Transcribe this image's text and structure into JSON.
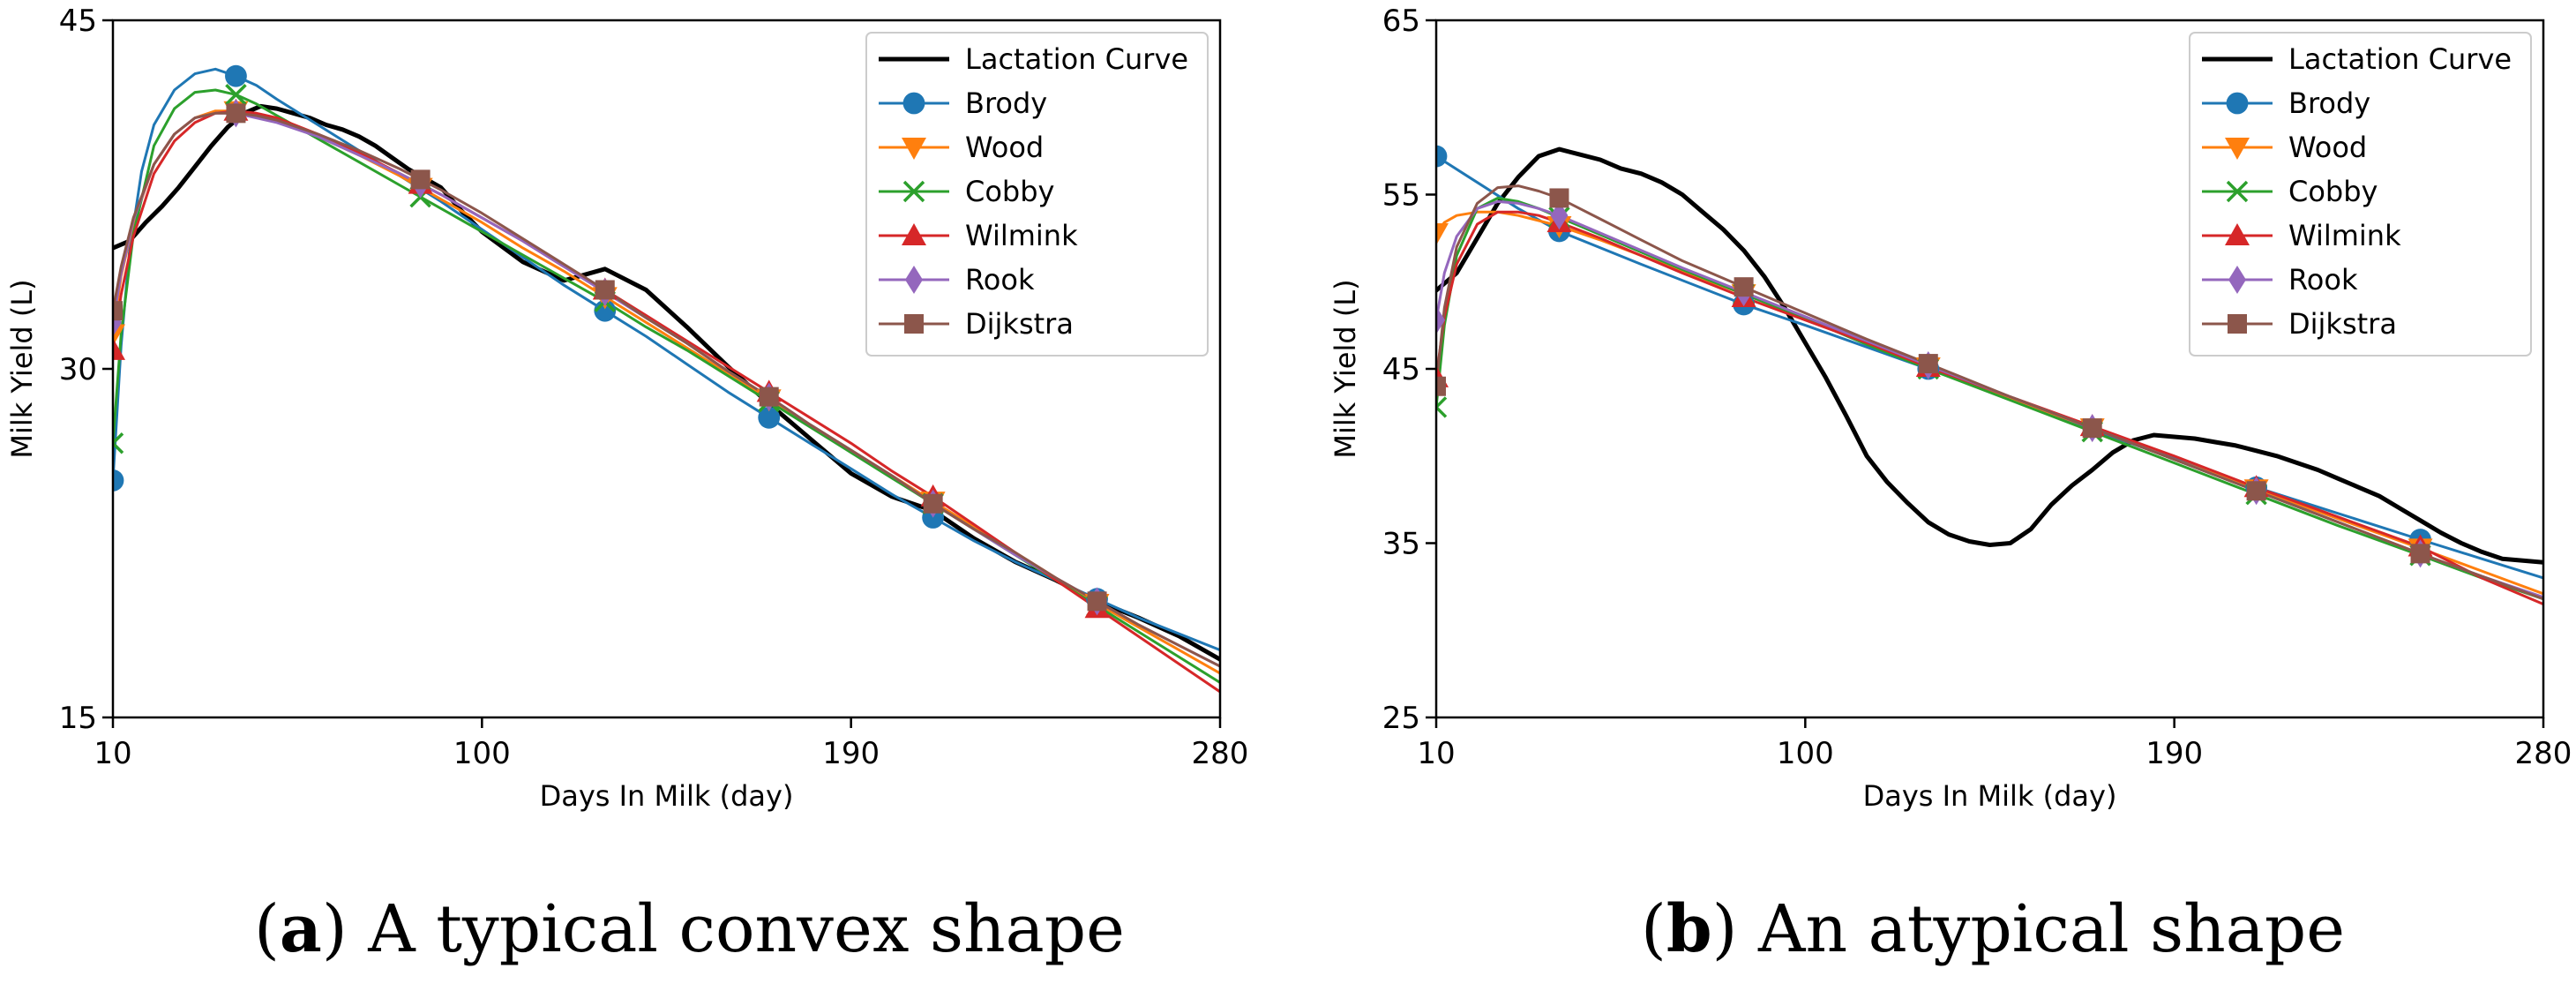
{
  "chart_data": [
    {
      "type": "line",
      "panel_label": "a",
      "caption": "A typical convex shape",
      "xlabel": "Days In Milk (day)",
      "ylabel": "Milk Yield (L)",
      "xlim": [
        10,
        280
      ],
      "ylim": [
        15,
        45
      ],
      "xticks": [
        10,
        100,
        190,
        280
      ],
      "yticks": [
        15,
        30,
        45
      ],
      "legend_position": "top-right",
      "series": [
        {
          "name": "Lactation Curve",
          "color": "#000000",
          "marker": "none",
          "x": [
            10,
            14,
            18,
            22,
            26,
            30,
            34,
            38,
            42,
            46,
            50,
            54,
            58,
            62,
            66,
            70,
            74,
            78,
            82,
            86,
            90,
            95,
            100,
            110,
            120,
            130,
            140,
            150,
            160,
            170,
            180,
            190,
            200,
            210,
            220,
            230,
            240,
            250,
            260,
            270,
            280
          ],
          "y": [
            35.2,
            35.5,
            36.3,
            37.0,
            37.8,
            38.7,
            39.6,
            40.4,
            41.0,
            41.3,
            41.2,
            41.0,
            40.8,
            40.5,
            40.3,
            40.0,
            39.6,
            39.1,
            38.6,
            38.2,
            37.8,
            36.8,
            35.9,
            34.6,
            33.8,
            34.3,
            33.4,
            31.8,
            30.1,
            28.5,
            27.0,
            25.5,
            24.5,
            23.9,
            22.7,
            21.7,
            20.9,
            20.0,
            19.3,
            18.5,
            17.5
          ]
        },
        {
          "name": "Brody",
          "color": "#1f77b4",
          "marker": "circle",
          "x": [
            10,
            12,
            14,
            17,
            20,
            25,
            30,
            35,
            40,
            45,
            50,
            60,
            70,
            80,
            90,
            100,
            110,
            120,
            130,
            140,
            150,
            160,
            170,
            180,
            190,
            200,
            210,
            220,
            230,
            240,
            250,
            260,
            270,
            280
          ],
          "y": [
            25.2,
            31.0,
            35.0,
            38.5,
            40.5,
            42.0,
            42.7,
            42.9,
            42.6,
            42.2,
            41.6,
            40.5,
            39.4,
            38.3,
            37.2,
            36.0,
            34.8,
            33.6,
            32.5,
            31.4,
            30.2,
            29.0,
            27.9,
            26.8,
            25.7,
            24.6,
            23.6,
            22.6,
            21.7,
            20.9,
            20.1,
            19.3,
            18.6,
            17.9
          ],
          "markers": [
            10,
            40,
            130,
            170,
            210,
            250
          ]
        },
        {
          "name": "Wood",
          "color": "#ff7f0e",
          "marker": "triangle-down",
          "x": [
            10,
            12,
            15,
            20,
            25,
            30,
            35,
            40,
            45,
            50,
            60,
            70,
            80,
            90,
            100,
            110,
            120,
            130,
            140,
            150,
            160,
            170,
            180,
            190,
            200,
            210,
            220,
            230,
            240,
            250,
            260,
            270,
            280
          ],
          "y": [
            31.5,
            34.0,
            36.3,
            38.8,
            40.1,
            40.8,
            41.1,
            41.1,
            40.9,
            40.7,
            40.0,
            39.2,
            38.3,
            37.3,
            36.3,
            35.2,
            34.2,
            33.1,
            32.0,
            30.9,
            29.8,
            28.7,
            27.6,
            26.5,
            25.4,
            24.3,
            23.2,
            22.1,
            21.0,
            19.9,
            18.9,
            17.9,
            16.9
          ],
          "markers": [
            10,
            40,
            85,
            130,
            170,
            210,
            250
          ]
        },
        {
          "name": "Cobby",
          "color": "#2ca02c",
          "marker": "x",
          "x": [
            10,
            12,
            15,
            20,
            25,
            30,
            35,
            40,
            45,
            50,
            60,
            70,
            80,
            90,
            100,
            110,
            120,
            130,
            140,
            150,
            160,
            170,
            180,
            190,
            200,
            210,
            220,
            230,
            240,
            250,
            260,
            270,
            280
          ],
          "y": [
            26.8,
            31.5,
            35.8,
            39.6,
            41.2,
            41.9,
            42.0,
            41.8,
            41.4,
            40.9,
            39.9,
            38.9,
            37.9,
            36.9,
            35.9,
            34.9,
            33.9,
            32.9,
            31.8,
            30.8,
            29.7,
            28.6,
            27.5,
            26.4,
            25.3,
            24.2,
            23.1,
            22.0,
            20.9,
            19.8,
            18.7,
            17.6,
            16.5
          ],
          "markers": [
            10,
            40,
            85,
            130,
            170,
            210,
            250
          ]
        },
        {
          "name": "Wilmink",
          "color": "#d62728",
          "marker": "triangle-up",
          "x": [
            10,
            12,
            15,
            20,
            25,
            30,
            35,
            40,
            45,
            50,
            60,
            70,
            80,
            90,
            100,
            110,
            120,
            130,
            140,
            150,
            160,
            170,
            180,
            190,
            200,
            210,
            220,
            230,
            240,
            250,
            260,
            270,
            280
          ],
          "y": [
            30.8,
            33.2,
            35.7,
            38.4,
            39.8,
            40.6,
            41.0,
            41.1,
            41.0,
            40.8,
            40.1,
            39.3,
            38.4,
            37.5,
            36.5,
            35.5,
            34.4,
            33.4,
            32.3,
            31.2,
            30.1,
            29.0,
            27.9,
            26.8,
            25.6,
            24.5,
            23.3,
            22.1,
            20.9,
            19.7,
            18.5,
            17.3,
            16.1
          ],
          "markers": [
            10,
            40,
            85,
            130,
            170,
            210,
            250
          ]
        },
        {
          "name": "Rook",
          "color": "#9467bd",
          "marker": "diamond",
          "x": [
            10,
            12,
            15,
            20,
            25,
            30,
            35,
            40,
            45,
            50,
            60,
            70,
            80,
            90,
            100,
            110,
            120,
            130,
            140,
            150,
            160,
            170,
            180,
            190,
            200,
            210,
            220,
            230,
            240,
            250,
            260,
            270,
            280
          ],
          "y": [
            32.0,
            34.1,
            36.4,
            38.8,
            40.1,
            40.8,
            41.0,
            41.0,
            40.8,
            40.6,
            40.0,
            39.2,
            38.4,
            37.5,
            36.5,
            35.5,
            34.4,
            33.3,
            32.2,
            31.1,
            29.9,
            28.8,
            27.6,
            26.5,
            25.4,
            24.2,
            23.1,
            22.0,
            21.0,
            20.0,
            19.0,
            18.1,
            17.2
          ],
          "markers": [
            10,
            40,
            85,
            130,
            170,
            210,
            250
          ]
        },
        {
          "name": "Dijkstra",
          "color": "#8c564b",
          "marker": "square",
          "x": [
            10,
            12,
            15,
            20,
            25,
            30,
            35,
            40,
            45,
            50,
            60,
            70,
            80,
            90,
            100,
            110,
            120,
            130,
            140,
            150,
            160,
            170,
            180,
            190,
            200,
            210,
            220,
            230,
            240,
            250,
            260,
            270,
            280
          ],
          "y": [
            32.5,
            34.4,
            36.5,
            38.8,
            40.1,
            40.8,
            41.0,
            41.0,
            40.9,
            40.7,
            40.1,
            39.4,
            38.6,
            37.7,
            36.7,
            35.6,
            34.5,
            33.4,
            32.2,
            31.1,
            29.9,
            28.8,
            27.6,
            26.5,
            25.4,
            24.2,
            23.1,
            22.1,
            21.0,
            20.0,
            19.0,
            18.1,
            17.2
          ],
          "markers": [
            10,
            40,
            85,
            130,
            170,
            210,
            250
          ]
        }
      ]
    },
    {
      "type": "line",
      "panel_label": "b",
      "caption": "An atypical shape",
      "xlabel": "Days In Milk (day)",
      "ylabel": "Milk Yield (L)",
      "xlim": [
        10,
        280
      ],
      "ylim": [
        25,
        65
      ],
      "xticks": [
        10,
        100,
        190,
        280
      ],
      "yticks": [
        25,
        35,
        45,
        55,
        65
      ],
      "legend_position": "top-right",
      "series": [
        {
          "name": "Lactation Curve",
          "color": "#000000",
          "marker": "none",
          "x": [
            10,
            15,
            20,
            25,
            30,
            35,
            40,
            45,
            50,
            55,
            60,
            65,
            70,
            75,
            80,
            85,
            90,
            95,
            100,
            105,
            110,
            115,
            120,
            125,
            130,
            135,
            140,
            145,
            150,
            155,
            160,
            165,
            170,
            175,
            180,
            185,
            190,
            195,
            200,
            205,
            210,
            215,
            220,
            225,
            230,
            235,
            240,
            245,
            250,
            255,
            260,
            265,
            270,
            275,
            280
          ],
          "y": [
            49.5,
            50.5,
            52.5,
            54.5,
            56.0,
            57.2,
            57.6,
            57.3,
            57.0,
            56.5,
            56.2,
            55.7,
            55.0,
            54.0,
            53.0,
            51.8,
            50.3,
            48.5,
            46.5,
            44.5,
            42.3,
            40.0,
            38.5,
            37.3,
            36.2,
            35.5,
            35.1,
            34.9,
            35.0,
            35.8,
            37.2,
            38.3,
            39.2,
            40.2,
            40.9,
            41.2,
            41.1,
            41.0,
            40.8,
            40.6,
            40.3,
            40.0,
            39.6,
            39.2,
            38.7,
            38.2,
            37.7,
            37.0,
            36.3,
            35.6,
            35.0,
            34.5,
            34.1,
            34.0,
            33.9
          ]
        },
        {
          "name": "Brody",
          "color": "#1f77b4",
          "marker": "circle",
          "x": [
            10,
            30,
            40,
            60,
            85,
            100,
            130,
            170,
            210,
            250,
            280
          ],
          "y": [
            57.2,
            54.2,
            52.9,
            51.0,
            48.7,
            47.5,
            45.0,
            41.5,
            38.2,
            35.2,
            33.0
          ],
          "markers": [
            10,
            40,
            85,
            130,
            210,
            250
          ]
        },
        {
          "name": "Wood",
          "color": "#ff7f0e",
          "marker": "triangle-down",
          "x": [
            10,
            12,
            15,
            20,
            25,
            30,
            35,
            40,
            50,
            60,
            70,
            85,
            100,
            115,
            130,
            150,
            170,
            190,
            210,
            230,
            250,
            265,
            280
          ],
          "y": [
            52.8,
            53.4,
            53.8,
            54.0,
            54.0,
            53.8,
            53.5,
            53.2,
            52.4,
            51.5,
            50.6,
            49.3,
            47.9,
            46.5,
            45.1,
            43.3,
            41.6,
            39.8,
            38.1,
            36.4,
            34.7,
            33.4,
            32.1
          ],
          "markers": [
            10,
            40,
            85,
            130,
            170,
            210,
            250
          ]
        },
        {
          "name": "Cobby",
          "color": "#2ca02c",
          "marker": "x",
          "x": [
            10,
            12,
            15,
            20,
            25,
            30,
            35,
            40,
            50,
            60,
            70,
            85,
            100,
            115,
            130,
            150,
            170,
            190,
            210,
            230,
            250,
            265,
            280
          ],
          "y": [
            42.8,
            47.5,
            51.5,
            54.2,
            54.8,
            54.6,
            54.2,
            53.7,
            52.7,
            51.7,
            50.7,
            49.3,
            47.9,
            46.4,
            45.0,
            43.2,
            41.4,
            39.6,
            37.8,
            36.0,
            34.3,
            33.0,
            31.8
          ],
          "markers": [
            10,
            40,
            85,
            130,
            170,
            210,
            250
          ]
        },
        {
          "name": "Wilmink",
          "color": "#d62728",
          "marker": "triangle-up",
          "x": [
            10,
            12,
            15,
            20,
            25,
            30,
            35,
            40,
            50,
            60,
            70,
            85,
            100,
            115,
            130,
            150,
            170,
            190,
            210,
            230,
            250,
            265,
            280
          ],
          "y": [
            44.5,
            48.0,
            51.0,
            53.3,
            54.0,
            54.0,
            53.8,
            53.4,
            52.5,
            51.5,
            50.5,
            49.1,
            47.8,
            46.5,
            45.1,
            43.4,
            41.7,
            40.0,
            38.2,
            36.5,
            34.8,
            33.0,
            31.5
          ],
          "markers": [
            10,
            40,
            85,
            130,
            170,
            210,
            250
          ]
        },
        {
          "name": "Rook",
          "color": "#9467bd",
          "marker": "diamond",
          "x": [
            10,
            12,
            15,
            20,
            25,
            30,
            35,
            40,
            50,
            60,
            70,
            85,
            100,
            115,
            130,
            150,
            170,
            190,
            210,
            230,
            250,
            265,
            280
          ],
          "y": [
            47.8,
            50.5,
            52.6,
            54.2,
            54.6,
            54.5,
            54.2,
            53.8,
            52.8,
            51.8,
            50.8,
            49.4,
            48.0,
            46.6,
            45.2,
            43.4,
            41.6,
            39.8,
            38.0,
            36.2,
            34.4,
            33.1,
            31.9
          ],
          "markers": [
            10,
            40,
            85,
            130,
            170,
            210,
            250
          ]
        },
        {
          "name": "Dijkstra",
          "color": "#8c564b",
          "marker": "square",
          "x": [
            10,
            12,
            15,
            20,
            25,
            30,
            35,
            40,
            50,
            60,
            70,
            85,
            100,
            115,
            130,
            150,
            170,
            190,
            210,
            230,
            250,
            265,
            280
          ],
          "y": [
            44.0,
            48.5,
            52.0,
            54.5,
            55.4,
            55.5,
            55.2,
            54.8,
            53.6,
            52.4,
            51.2,
            49.7,
            48.2,
            46.7,
            45.3,
            43.4,
            41.6,
            39.8,
            38.0,
            36.2,
            34.4,
            33.1,
            31.8
          ],
          "markers": [
            10,
            40,
            85,
            130,
            170,
            210,
            250
          ]
        }
      ]
    }
  ]
}
